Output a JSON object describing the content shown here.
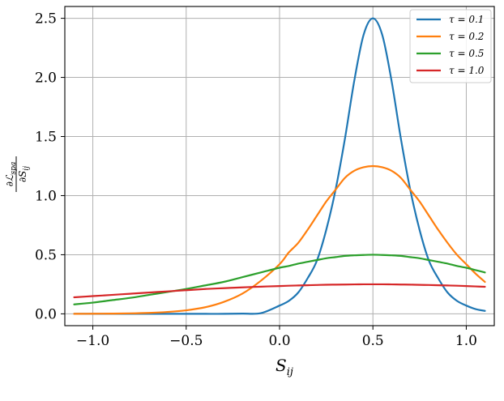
{
  "chart_data": {
    "type": "line",
    "title": "",
    "xlabel": "S_ij",
    "xlabel_main": "S",
    "xlabel_sub": "ij",
    "ylabel": "∂L_spa / ∂S_ij",
    "ylabel_num": "∂ℒ",
    "ylabel_num_sub": "spa",
    "ylabel_den": "∂S",
    "ylabel_den_sub": "ij",
    "xlim": [
      -1.15,
      1.15
    ],
    "ylim": [
      -0.1,
      2.6
    ],
    "xticks": [
      -1.0,
      -0.5,
      0.0,
      0.5,
      1.0
    ],
    "xtick_labels": [
      "−1.0",
      "−0.5",
      "0.0",
      "0.5",
      "1.0"
    ],
    "yticks": [
      0.0,
      0.5,
      1.0,
      1.5,
      2.0,
      2.5
    ],
    "ytick_labels": [
      "0.0",
      "0.5",
      "1.0",
      "1.5",
      "2.0",
      "2.5"
    ],
    "grid": true,
    "legend_position": "top-right",
    "x": [
      -1.1,
      -1.0,
      -0.9,
      -0.8,
      -0.7,
      -0.6,
      -0.5,
      -0.4,
      -0.3,
      -0.2,
      -0.1,
      0.0,
      0.05,
      0.1,
      0.15,
      0.2,
      0.25,
      0.3,
      0.35,
      0.4,
      0.45,
      0.5,
      0.55,
      0.6,
      0.65,
      0.7,
      0.75,
      0.8,
      0.85,
      0.9,
      0.95,
      1.0,
      1.05,
      1.1
    ],
    "series": [
      {
        "name": "τ = 0.1",
        "color": "#1f77b4",
        "values": [
          0.0,
          0.0,
          0.0,
          0.0,
          0.0,
          0.0,
          0.0,
          0.0,
          0.0,
          0.002,
          0.006,
          0.07,
          0.11,
          0.18,
          0.3,
          0.45,
          0.71,
          1.05,
          1.48,
          1.97,
          2.36,
          2.5,
          2.36,
          1.97,
          1.48,
          1.05,
          0.71,
          0.45,
          0.3,
          0.18,
          0.11,
          0.07,
          0.04,
          0.025
        ]
      },
      {
        "name": "τ = 0.2",
        "color": "#ff7f0e",
        "values": [
          0.0,
          0.001,
          0.002,
          0.004,
          0.008,
          0.016,
          0.03,
          0.055,
          0.1,
          0.17,
          0.28,
          0.42,
          0.52,
          0.6,
          0.71,
          0.83,
          0.95,
          1.05,
          1.15,
          1.21,
          1.24,
          1.25,
          1.24,
          1.21,
          1.15,
          1.05,
          0.95,
          0.83,
          0.71,
          0.6,
          0.5,
          0.42,
          0.34,
          0.27
        ]
      },
      {
        "name": "τ = 0.5",
        "color": "#2ca02c",
        "values": [
          0.08,
          0.095,
          0.115,
          0.135,
          0.16,
          0.185,
          0.21,
          0.24,
          0.27,
          0.31,
          0.35,
          0.39,
          0.405,
          0.425,
          0.44,
          0.455,
          0.47,
          0.48,
          0.49,
          0.495,
          0.498,
          0.5,
          0.498,
          0.495,
          0.49,
          0.48,
          0.47,
          0.455,
          0.44,
          0.425,
          0.405,
          0.39,
          0.37,
          0.35
        ]
      },
      {
        "name": "τ = 1.0",
        "color": "#d62728",
        "values": [
          0.14,
          0.15,
          0.16,
          0.17,
          0.18,
          0.19,
          0.2,
          0.21,
          0.217,
          0.224,
          0.23,
          0.235,
          0.238,
          0.24,
          0.242,
          0.244,
          0.246,
          0.247,
          0.248,
          0.249,
          0.25,
          0.25,
          0.25,
          0.249,
          0.248,
          0.247,
          0.245,
          0.244,
          0.242,
          0.24,
          0.238,
          0.235,
          0.232,
          0.229
        ]
      }
    ]
  }
}
